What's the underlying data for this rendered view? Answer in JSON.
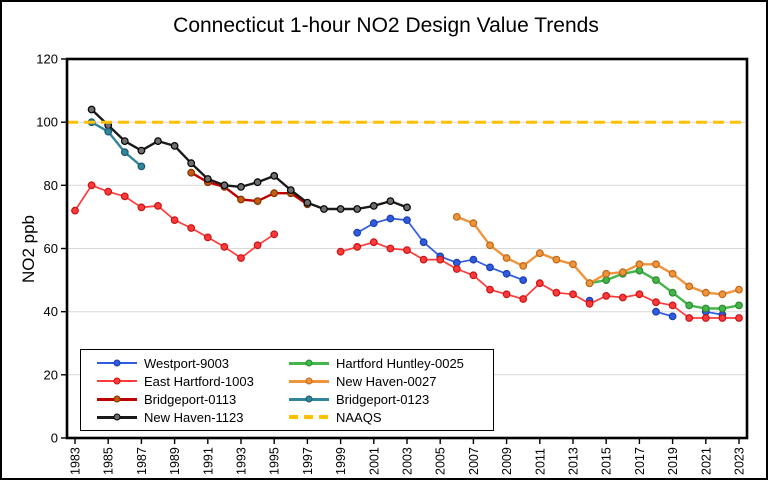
{
  "title": "Connecticut 1-hour NO2 Design Value Trends",
  "chart_data": {
    "type": "line",
    "title": "Connecticut 1-hour NO2 Design Value Trends",
    "xlabel": "",
    "ylabel": "NO2 ppb",
    "ylim": [
      0,
      120
    ],
    "y_ticks": [
      0,
      20,
      40,
      60,
      80,
      100,
      120
    ],
    "x_range": [
      1983,
      2023
    ],
    "x_ticks": [
      1983,
      1985,
      1987,
      1989,
      1991,
      1993,
      1995,
      1997,
      1999,
      2001,
      2003,
      2005,
      2007,
      2009,
      2011,
      2013,
      2015,
      2017,
      2019,
      2021,
      2023
    ],
    "grid": "horizontal",
    "gridline_color": "#D9D9D9",
    "axis_color": "#000000",
    "legend_position": "inside bottom-left",
    "reference_line": {
      "name": "NAAQS",
      "value": 100,
      "color": "#FFC000"
    },
    "series": [
      {
        "name": "Westport-9003",
        "color": "#2D5BE2",
        "marker_fill": "#2D5BE2",
        "marker_edge": "#1C3FA8",
        "line_width": 1.7,
        "style": "solid",
        "points": [
          [
            2000,
            65
          ],
          [
            2001,
            68
          ],
          [
            2002,
            69.5
          ],
          [
            2003,
            69
          ],
          [
            2004,
            62
          ],
          [
            2005,
            57.5
          ],
          [
            2006,
            55.5
          ],
          [
            2007,
            56.5
          ],
          [
            2008,
            54
          ],
          [
            2009,
            52
          ],
          [
            2010,
            50
          ],
          [
            2014,
            43.5
          ],
          [
            2018,
            40
          ],
          [
            2019,
            38.5
          ],
          [
            2021,
            40
          ],
          [
            2022,
            39
          ]
        ]
      },
      {
        "name": "East Hartford-1003",
        "color": "#FF3A3A",
        "marker_fill": "#FF3A3A",
        "marker_edge": "#C71414",
        "line_width": 1.7,
        "style": "solid",
        "points": [
          [
            1983,
            72
          ],
          [
            1984,
            80
          ],
          [
            1985,
            78
          ],
          [
            1986,
            76.5
          ],
          [
            1987,
            73
          ],
          [
            1988,
            73.5
          ],
          [
            1989,
            69
          ],
          [
            1990,
            66.5
          ],
          [
            1991,
            63.5
          ],
          [
            1992,
            60.5
          ],
          [
            1993,
            57
          ],
          [
            1994,
            61
          ],
          [
            1995,
            64.5
          ],
          [
            1999,
            59
          ],
          [
            2000,
            60.5
          ],
          [
            2001,
            62
          ],
          [
            2002,
            60
          ],
          [
            2003,
            59.5
          ],
          [
            2004,
            56.5
          ],
          [
            2005,
            56.5
          ],
          [
            2006,
            53.5
          ],
          [
            2007,
            51.5
          ],
          [
            2008,
            47
          ],
          [
            2009,
            45.5
          ],
          [
            2010,
            44
          ],
          [
            2011,
            49
          ],
          [
            2012,
            46
          ],
          [
            2013,
            45.5
          ],
          [
            2014,
            42.5
          ],
          [
            2015,
            45
          ],
          [
            2016,
            44.5
          ],
          [
            2017,
            45.5
          ],
          [
            2018,
            43
          ],
          [
            2019,
            42
          ],
          [
            2020,
            38
          ],
          [
            2021,
            38
          ],
          [
            2022,
            38
          ],
          [
            2023,
            38
          ]
        ]
      },
      {
        "name": "Bridgeport-0113",
        "color": "#C00000",
        "marker_fill": "#C55A11",
        "marker_edge": "#7F3300",
        "line_width": 2.4,
        "style": "solid",
        "points": [
          [
            1990,
            84
          ],
          [
            1991,
            81
          ],
          [
            1992,
            79.5
          ],
          [
            1993,
            75.5
          ],
          [
            1994,
            75
          ],
          [
            1995,
            77.5
          ],
          [
            1996,
            77.5
          ],
          [
            1997,
            74
          ]
        ]
      },
      {
        "name": "New Haven-1123",
        "color": "#1A1A1A",
        "marker_fill": "#6E6E6E",
        "marker_edge": "#000000",
        "line_width": 2.4,
        "style": "solid",
        "points": [
          [
            1984,
            104
          ],
          [
            1985,
            99
          ],
          [
            1986,
            94
          ],
          [
            1987,
            91
          ],
          [
            1988,
            94
          ],
          [
            1989,
            92.5
          ],
          [
            1990,
            87
          ],
          [
            1991,
            82
          ],
          [
            1992,
            80
          ],
          [
            1993,
            79.5
          ],
          [
            1994,
            81
          ],
          [
            1995,
            83
          ],
          [
            1996,
            78.5
          ],
          [
            1997,
            74.5
          ],
          [
            1998,
            72.5
          ],
          [
            1999,
            72.5
          ],
          [
            2000,
            72.5
          ],
          [
            2001,
            73.5
          ],
          [
            2002,
            75
          ],
          [
            2003,
            73
          ]
        ]
      },
      {
        "name": "Hartford Huntley-0025",
        "color": "#44B649",
        "marker_fill": "#44B649",
        "marker_edge": "#2B8A31",
        "line_width": 2.4,
        "style": "solid",
        "points": [
          [
            2014,
            49
          ],
          [
            2015,
            50
          ],
          [
            2016,
            52
          ],
          [
            2017,
            53
          ],
          [
            2018,
            50
          ],
          [
            2019,
            46
          ],
          [
            2020,
            42
          ],
          [
            2021,
            41
          ],
          [
            2022,
            41
          ],
          [
            2023,
            42
          ]
        ]
      },
      {
        "name": "New Haven-0027",
        "color": "#F0943C",
        "marker_fill": "#F0943C",
        "marker_edge": "#C06818",
        "line_width": 2.4,
        "style": "solid",
        "points": [
          [
            2006,
            70
          ],
          [
            2007,
            68
          ],
          [
            2008,
            61
          ],
          [
            2009,
            57
          ],
          [
            2010,
            54.5
          ],
          [
            2011,
            58.5
          ],
          [
            2012,
            56.5
          ],
          [
            2013,
            55
          ],
          [
            2014,
            49
          ],
          [
            2015,
            52
          ],
          [
            2016,
            52.5
          ],
          [
            2017,
            55
          ],
          [
            2018,
            55
          ],
          [
            2019,
            52
          ],
          [
            2020,
            48
          ],
          [
            2021,
            46
          ],
          [
            2022,
            45.5
          ],
          [
            2023,
            47
          ]
        ]
      },
      {
        "name": "Bridgeport-0123",
        "color": "#31859C",
        "marker_fill": "#31859C",
        "marker_edge": "#1E5A6E",
        "line_width": 2.4,
        "style": "solid",
        "points": [
          [
            1984,
            100
          ],
          [
            1985,
            97
          ],
          [
            1986,
            90.5
          ],
          [
            1987,
            86
          ]
        ]
      },
      {
        "name": "NAAQS",
        "color": "#FFC000",
        "marker_fill": "none",
        "marker_edge": "none",
        "line_width": 3,
        "style": "dashed",
        "points": [
          [
            1983,
            100
          ],
          [
            2023,
            100
          ]
        ]
      }
    ]
  }
}
